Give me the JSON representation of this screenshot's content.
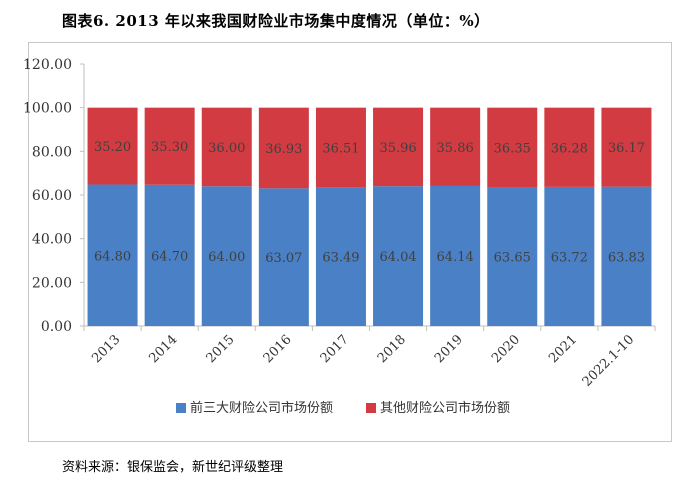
{
  "title": "图表6.   2013 年以来我国财险业市场集中度情况（单位：%）",
  "source": "资料来源：银保监会，新世纪评级整理",
  "colors": {
    "top3": "#4a80c5",
    "others": "#d23b41"
  },
  "chart_data": {
    "type": "bar",
    "stacked": true,
    "title": "2013 年以来我国财险业市场集中度情况（单位：%）",
    "xlabel": "",
    "ylabel": "",
    "ylim": [
      0,
      120
    ],
    "yticks": [
      "0.00",
      "20.00",
      "40.00",
      "60.00",
      "80.00",
      "100.00",
      "120.00"
    ],
    "categories": [
      "2013",
      "2014",
      "2015",
      "2016",
      "2017",
      "2018",
      "2019",
      "2020",
      "2021",
      "2022.1-10"
    ],
    "series": [
      {
        "name": "前三大财险公司市场份额",
        "values": [
          64.8,
          64.7,
          64.0,
          63.07,
          63.49,
          64.04,
          64.14,
          63.65,
          63.72,
          63.83
        ]
      },
      {
        "name": "其他财险公司市场份额",
        "values": [
          35.2,
          35.3,
          36.0,
          36.93,
          36.51,
          35.96,
          35.86,
          36.35,
          36.28,
          36.17
        ]
      }
    ],
    "value_labels": [
      [
        "64.80",
        "64.70",
        "64.00",
        "63.07",
        "63.49",
        "64.04",
        "64.14",
        "63.65",
        "63.72",
        "63.83"
      ],
      [
        "35.20",
        "35.30",
        "36.00",
        "36.93",
        "36.51",
        "35.96",
        "35.86",
        "36.35",
        "36.28",
        "36.17"
      ]
    ],
    "legend_position": "bottom",
    "grid": false
  }
}
